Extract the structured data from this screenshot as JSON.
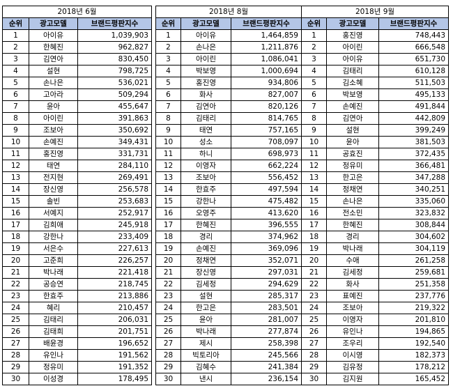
{
  "headers": {
    "rank": "순위",
    "model": "광고모델",
    "index": "브랜드평판지수"
  },
  "tables": [
    {
      "title": "2018년 6월",
      "rows": [
        [
          "1",
          "아이유",
          "1,039,903"
        ],
        [
          "2",
          "한혜진",
          "962,827"
        ],
        [
          "3",
          "김연아",
          "830,450"
        ],
        [
          "4",
          "설현",
          "798,725"
        ],
        [
          "5",
          "손나은",
          "536,021"
        ],
        [
          "6",
          "고아라",
          "509,294"
        ],
        [
          "7",
          "윤아",
          "455,647"
        ],
        [
          "8",
          "아이린",
          "391,863"
        ],
        [
          "9",
          "조보아",
          "350,692"
        ],
        [
          "10",
          "손예진",
          "349,431"
        ],
        [
          "11",
          "홍진영",
          "331,731"
        ],
        [
          "12",
          "태연",
          "284,110"
        ],
        [
          "13",
          "전지현",
          "269,491"
        ],
        [
          "14",
          "장신영",
          "256,578"
        ],
        [
          "15",
          "솔빈",
          "253,683"
        ],
        [
          "16",
          "서예지",
          "252,917"
        ],
        [
          "17",
          "김희애",
          "245,918"
        ],
        [
          "18",
          "강한나",
          "233,409"
        ],
        [
          "19",
          "서은수",
          "227,613"
        ],
        [
          "20",
          "고준희",
          "226,257"
        ],
        [
          "21",
          "박나래",
          "221,418"
        ],
        [
          "22",
          "공승연",
          "218,745"
        ],
        [
          "23",
          "한효주",
          "213,886"
        ],
        [
          "24",
          "혜리",
          "210,457"
        ],
        [
          "25",
          "김태리",
          "206,031"
        ],
        [
          "26",
          "김태희",
          "201,751"
        ],
        [
          "27",
          "배윤경",
          "196,652"
        ],
        [
          "28",
          "유인나",
          "191,562"
        ],
        [
          "29",
          "정유미",
          "191,352"
        ],
        [
          "30",
          "이성경",
          "178,495"
        ]
      ]
    },
    {
      "title": "2018년 8월",
      "rows": [
        [
          "1",
          "아이유",
          "1,464,859"
        ],
        [
          "2",
          "손나은",
          "1,211,876"
        ],
        [
          "3",
          "아이린",
          "1,086,041"
        ],
        [
          "4",
          "박보영",
          "1,000,694"
        ],
        [
          "5",
          "홍진영",
          "934,806"
        ],
        [
          "6",
          "화사",
          "827,007"
        ],
        [
          "7",
          "김연아",
          "820,126"
        ],
        [
          "8",
          "김태리",
          "814,765"
        ],
        [
          "9",
          "태연",
          "757,165"
        ],
        [
          "10",
          "성소",
          "708,097"
        ],
        [
          "11",
          "하니",
          "698,973"
        ],
        [
          "12",
          "이영자",
          "662,224"
        ],
        [
          "13",
          "조보아",
          "556,452"
        ],
        [
          "14",
          "한효주",
          "497,594"
        ],
        [
          "15",
          "강한나",
          "475,482"
        ],
        [
          "16",
          "오영주",
          "413,620"
        ],
        [
          "17",
          "한혜진",
          "396,555"
        ],
        [
          "18",
          "경리",
          "374,962"
        ],
        [
          "19",
          "손예진",
          "369,096"
        ],
        [
          "20",
          "정채연",
          "352,071"
        ],
        [
          "21",
          "장신영",
          "297,031"
        ],
        [
          "22",
          "김세정",
          "294,629"
        ],
        [
          "23",
          "설현",
          "285,317"
        ],
        [
          "24",
          "한고은",
          "283,501"
        ],
        [
          "25",
          "윤아",
          "281,007"
        ],
        [
          "26",
          "박나래",
          "277,874"
        ],
        [
          "27",
          "제시",
          "258,398"
        ],
        [
          "28",
          "빅토리아",
          "245,566"
        ],
        [
          "29",
          "김혜수",
          "241,384"
        ],
        [
          "30",
          "낸시",
          "236,154"
        ]
      ]
    },
    {
      "title": "2018년 9월",
      "rows": [
        [
          "1",
          "홍진영",
          "748,443"
        ],
        [
          "2",
          "아이린",
          "666,548"
        ],
        [
          "3",
          "아이유",
          "651,730"
        ],
        [
          "4",
          "김태리",
          "610,128"
        ],
        [
          "5",
          "김소혜",
          "511,503"
        ],
        [
          "6",
          "박보영",
          "495,133"
        ],
        [
          "7",
          "손예진",
          "491,844"
        ],
        [
          "8",
          "김연아",
          "442,809"
        ],
        [
          "9",
          "설현",
          "399,249"
        ],
        [
          "10",
          "윤아",
          "381,503"
        ],
        [
          "11",
          "공효진",
          "372,435"
        ],
        [
          "12",
          "정유미",
          "366,481"
        ],
        [
          "13",
          "한고은",
          "347,288"
        ],
        [
          "14",
          "정채연",
          "340,251"
        ],
        [
          "15",
          "손나은",
          "335,060"
        ],
        [
          "16",
          "전소민",
          "323,832"
        ],
        [
          "17",
          "한혜진",
          "308,844"
        ],
        [
          "18",
          "경리",
          "304,602"
        ],
        [
          "19",
          "박나래",
          "304,119"
        ],
        [
          "20",
          "수애",
          "261,258"
        ],
        [
          "21",
          "김세정",
          "259,681"
        ],
        [
          "22",
          "화사",
          "251,358"
        ],
        [
          "23",
          "표예진",
          "237,776"
        ],
        [
          "24",
          "조보아",
          "219,322"
        ],
        [
          "25",
          "이영자",
          "201,810"
        ],
        [
          "26",
          "유인나",
          "194,865"
        ],
        [
          "27",
          "조우리",
          "192,540"
        ],
        [
          "28",
          "이시영",
          "182,373"
        ],
        [
          "29",
          "김유정",
          "178,212"
        ],
        [
          "30",
          "김지원",
          "165,452"
        ]
      ]
    }
  ]
}
